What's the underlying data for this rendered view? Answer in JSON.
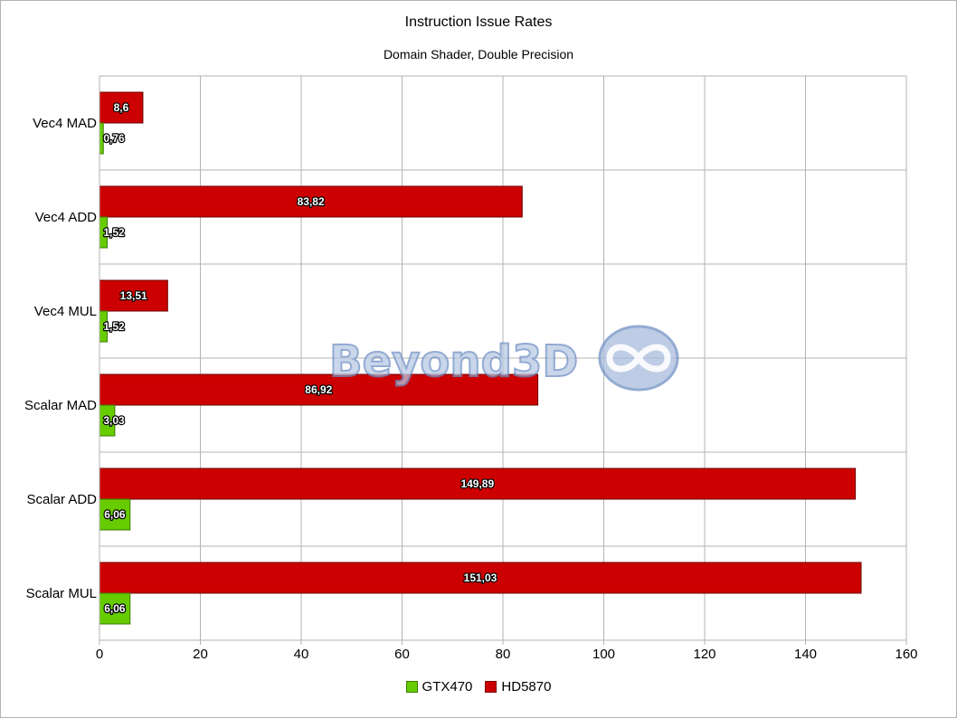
{
  "chart_data": {
    "type": "bar",
    "orientation": "horizontal",
    "title": "Instruction Issue Rates",
    "subtitle": "Domain Shader, Double Precision",
    "categories": [
      "Vec4 MAD",
      "Vec4 ADD",
      "Vec4 MUL",
      "Scalar MAD",
      "Scalar ADD",
      "Scalar MUL"
    ],
    "series": [
      {
        "name": "GTX470",
        "color": "#66cc00",
        "values": [
          0.76,
          1.52,
          1.52,
          3.03,
          6.06,
          6.06
        ],
        "labels": [
          "0,76",
          "1,52",
          "1,52",
          "3,03",
          "6,06",
          "6,06"
        ]
      },
      {
        "name": "HD5870",
        "color": "#cc0000",
        "values": [
          8.6,
          83.82,
          13.51,
          86.92,
          149.89,
          151.03
        ],
        "labels": [
          "8,6",
          "83,82",
          "13,51",
          "86,92",
          "149,89",
          "151,03"
        ]
      }
    ],
    "xlim": [
      0,
      160
    ],
    "xticks": [
      0,
      20,
      40,
      60,
      80,
      100,
      120,
      140,
      160
    ],
    "xlabel": "",
    "ylabel": "",
    "grid": true,
    "legend_position": "bottom"
  },
  "watermark": {
    "text": "Beyond3D"
  }
}
